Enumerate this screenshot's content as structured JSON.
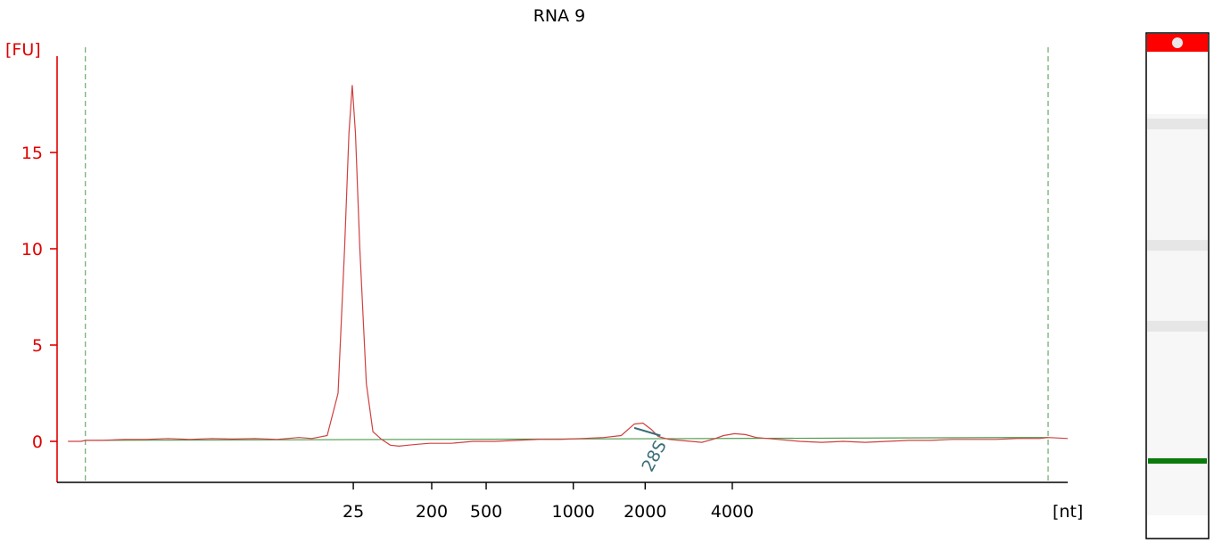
{
  "chart_data": {
    "type": "line",
    "title": "RNA 9",
    "ylabel": "[FU]",
    "xlabel": "[nt]",
    "ylim": [
      -2.2,
      20
    ],
    "yticks": [
      0,
      5,
      10,
      15
    ],
    "xticks": [
      "25",
      "200",
      "500",
      "1000",
      "2000",
      "4000"
    ],
    "xtick_time": [
      35.5,
      39.1,
      41.6,
      45.6,
      48.9,
      52.9
    ],
    "xlim": [
      21.9,
      68.3
    ],
    "marker_lines_time": [
      23.2,
      67.4
    ],
    "series": [
      {
        "color": "#d04040",
        "points": [
          [
            22.4,
            0.0
          ],
          [
            23.0,
            0.0
          ],
          [
            23.2,
            0.05
          ],
          [
            24.0,
            0.05
          ],
          [
            25.0,
            0.1
          ],
          [
            26.0,
            0.1
          ],
          [
            27.0,
            0.15
          ],
          [
            28.0,
            0.1
          ],
          [
            29.0,
            0.15
          ],
          [
            30.0,
            0.12
          ],
          [
            31.0,
            0.15
          ],
          [
            32.0,
            0.1
          ],
          [
            33.0,
            0.2
          ],
          [
            33.6,
            0.15
          ],
          [
            34.3,
            0.3
          ],
          [
            34.8,
            2.5
          ],
          [
            35.1,
            10.0
          ],
          [
            35.3,
            16.0
          ],
          [
            35.45,
            18.5
          ],
          [
            35.6,
            16.0
          ],
          [
            35.8,
            10.0
          ],
          [
            36.1,
            3.0
          ],
          [
            36.4,
            0.5
          ],
          [
            36.8,
            0.1
          ],
          [
            37.2,
            -0.2
          ],
          [
            37.6,
            -0.25
          ],
          [
            38.0,
            -0.2
          ],
          [
            38.5,
            -0.15
          ],
          [
            39.0,
            -0.1
          ],
          [
            40.0,
            -0.1
          ],
          [
            41.0,
            0.0
          ],
          [
            42.0,
            0.0
          ],
          [
            43.0,
            0.05
          ],
          [
            44.0,
            0.1
          ],
          [
            45.0,
            0.1
          ],
          [
            46.0,
            0.15
          ],
          [
            47.0,
            0.2
          ],
          [
            47.8,
            0.3
          ],
          [
            48.4,
            0.9
          ],
          [
            48.8,
            0.95
          ],
          [
            49.2,
            0.6
          ],
          [
            49.5,
            0.25
          ],
          [
            50.0,
            0.1
          ],
          [
            50.5,
            0.05
          ],
          [
            51.0,
            0.0
          ],
          [
            51.5,
            -0.05
          ],
          [
            52.0,
            0.1
          ],
          [
            52.5,
            0.3
          ],
          [
            53.0,
            0.4
          ],
          [
            53.5,
            0.35
          ],
          [
            54.0,
            0.2
          ],
          [
            55.0,
            0.1
          ],
          [
            56.0,
            0.0
          ],
          [
            57.0,
            -0.05
          ],
          [
            58.0,
            0.0
          ],
          [
            59.0,
            -0.05
          ],
          [
            60.0,
            0.0
          ],
          [
            61.0,
            0.05
          ],
          [
            62.0,
            0.05
          ],
          [
            63.0,
            0.1
          ],
          [
            64.0,
            0.1
          ],
          [
            65.0,
            0.1
          ],
          [
            66.0,
            0.15
          ],
          [
            67.0,
            0.15
          ],
          [
            67.4,
            0.2
          ],
          [
            68.3,
            0.15
          ]
        ]
      }
    ],
    "baseline": {
      "color": "#4a9a4a",
      "points": [
        [
          23.2,
          0.05
        ],
        [
          67.4,
          0.2
        ]
      ]
    },
    "peaks": [
      {
        "label": "28S",
        "apex": [
          48.4,
          0.7
        ],
        "base": [
          49.6,
          0.3
        ]
      }
    ],
    "gel_lane": {
      "top_band_color": "#ff0000",
      "marker_band_color": "#0a7a0a",
      "faint_bands": [
        0.18,
        0.42,
        0.58
      ]
    }
  }
}
